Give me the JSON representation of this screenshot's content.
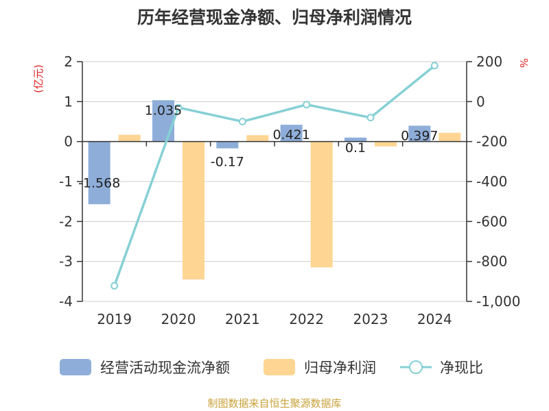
{
  "title": "历年经营现金净额、归母净利润情况",
  "source": "制图数据来自恒生聚源数据库",
  "colors": {
    "cashflow": "#8eaed9",
    "profit": "#fed592",
    "ratio": "#86d0d5",
    "unit": "#e02020"
  },
  "chart_data": {
    "type": "bar",
    "categories": [
      "2019",
      "2020",
      "2021",
      "2022",
      "2023",
      "2024"
    ],
    "series": [
      {
        "name": "经营活动现金流净额",
        "type": "bar",
        "axis": "left",
        "values": [
          -1.568,
          1.035,
          -0.17,
          0.421,
          0.1,
          0.397
        ],
        "data_labels": [
          "-1.568",
          "1.035",
          "-0.17",
          "0.421",
          "0.1",
          "0.397"
        ]
      },
      {
        "name": "归母净利润",
        "type": "bar",
        "axis": "left",
        "values": [
          0.17,
          -3.45,
          0.16,
          -3.15,
          -0.12,
          0.22
        ]
      },
      {
        "name": "净现比",
        "type": "line",
        "axis": "right",
        "values": [
          -922,
          -30,
          -100,
          -15,
          -80,
          180
        ]
      }
    ],
    "y_left": {
      "unit_label": "(亿元)",
      "min": -4,
      "max": 2,
      "ticks": [
        "2",
        "1",
        "0",
        "-1",
        "-2",
        "-3",
        "-4"
      ]
    },
    "y_right": {
      "unit_label": "%",
      "min": -1000,
      "max": 200,
      "ticks": [
        "200",
        "0",
        "-200",
        "-400",
        "-600",
        "-800",
        "-1,000"
      ]
    },
    "grid": true,
    "legend_position": "bottom"
  }
}
